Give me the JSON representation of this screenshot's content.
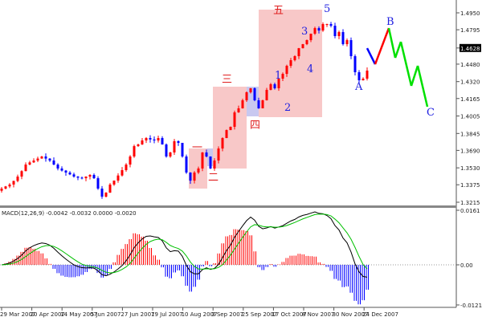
{
  "chart_data": [
    {
      "type": "candlestick",
      "title": "",
      "price_axis_ticks": [
        "1.4950",
        "1.4795",
        "1.4628",
        "1.4480",
        "1.4320",
        "1.4165",
        "1.4005",
        "1.3845",
        "1.3690",
        "1.3530",
        "1.3375",
        "1.3215"
      ],
      "current_price": "1.4628",
      "time_axis_ticks": [
        "29 Mar 2007",
        "20 Apr 2007",
        "14 May 2007",
        "5 Jun 2007",
        "27 Jun 2007",
        "19 Jul 2007",
        "10 Aug 2007",
        "3 Sep 2007",
        "25 Sep 2007",
        "17 Oct 2007",
        "8 Nov 2007",
        "30 Nov 2007",
        "24 Dec 2007"
      ],
      "ylim": [
        1.3215,
        1.495
      ],
      "up_color": "#ff0000",
      "down_color": "#0000ff",
      "closes": [
        1.334,
        1.336,
        1.3377,
        1.341,
        1.345,
        1.35,
        1.356,
        1.358,
        1.3597,
        1.3615,
        1.3634,
        1.3615,
        1.3597,
        1.356,
        1.3524,
        1.3505,
        1.3487,
        1.347,
        1.345,
        1.344,
        1.3435,
        1.345,
        1.3465,
        1.3435,
        1.334,
        1.3266,
        1.3303,
        1.3377,
        1.3413,
        1.346,
        1.3509,
        1.356,
        1.3634,
        1.3729,
        1.3744,
        1.3781,
        1.3803,
        1.379,
        1.3781,
        1.3803,
        1.3744,
        1.3634,
        1.3671,
        1.3774,
        1.3759,
        1.3634,
        1.3487,
        1.3413,
        1.3487,
        1.3524,
        1.3671,
        1.3634,
        1.3524,
        1.3597,
        1.3707,
        1.3803,
        1.3876,
        1.3906,
        1.4038,
        1.4075,
        1.4149,
        1.4222,
        1.4259,
        1.4149,
        1.4075,
        1.4149,
        1.4244,
        1.4296,
        1.4259,
        1.4347,
        1.4391,
        1.4465,
        1.4516,
        1.4553,
        1.4626,
        1.4663,
        1.47,
        1.4759,
        1.481,
        1.4788,
        1.4847,
        1.4847,
        1.4832,
        1.4737,
        1.4774,
        1.4663,
        1.47,
        1.4553,
        1.4406,
        1.4332,
        1.4347,
        1.4421
      ],
      "projection": [
        {
          "bar": 91,
          "price": 1.4626,
          "color": "#0000ff"
        },
        {
          "bar": 93,
          "price": 1.4479,
          "color": "#ff0000"
        },
        {
          "bar": 96.4,
          "price": 1.481,
          "color": "#00e000"
        },
        {
          "bar": 98,
          "price": 1.4538,
          "color": "#00e000"
        },
        {
          "bar": 99.4,
          "price": 1.4685,
          "color": "#00e000"
        },
        {
          "bar": 102,
          "price": 1.4281,
          "color": "#00e000"
        },
        {
          "bar": 103.6,
          "price": 1.4465,
          "color": "#00e000"
        },
        {
          "bar": 106,
          "price": 1.409,
          "color": "#00e000"
        }
      ],
      "chinese_wave_labels": [
        "一",
        "二",
        "三",
        "四",
        "五"
      ],
      "wave_labels": [
        "1",
        "2",
        "3",
        "4",
        "5",
        "A",
        "B",
        "C"
      ],
      "box_colors": {
        "pink": "#f8c8c8",
        "blue": "#c8c8f0"
      }
    },
    {
      "type": "macd",
      "label": "MACD(12,26,9) -0.0042 -0.0032 0.0000 -0.0020",
      "axis_ticks": [
        "0.0161",
        "0.00",
        "-0.0121"
      ],
      "ylim": [
        -0.0121,
        0.0161
      ],
      "line_color": "#000000",
      "signal_color": "#00c000",
      "hist_up_color": "#ff0000",
      "hist_down_color": "#0000ff"
    }
  ]
}
